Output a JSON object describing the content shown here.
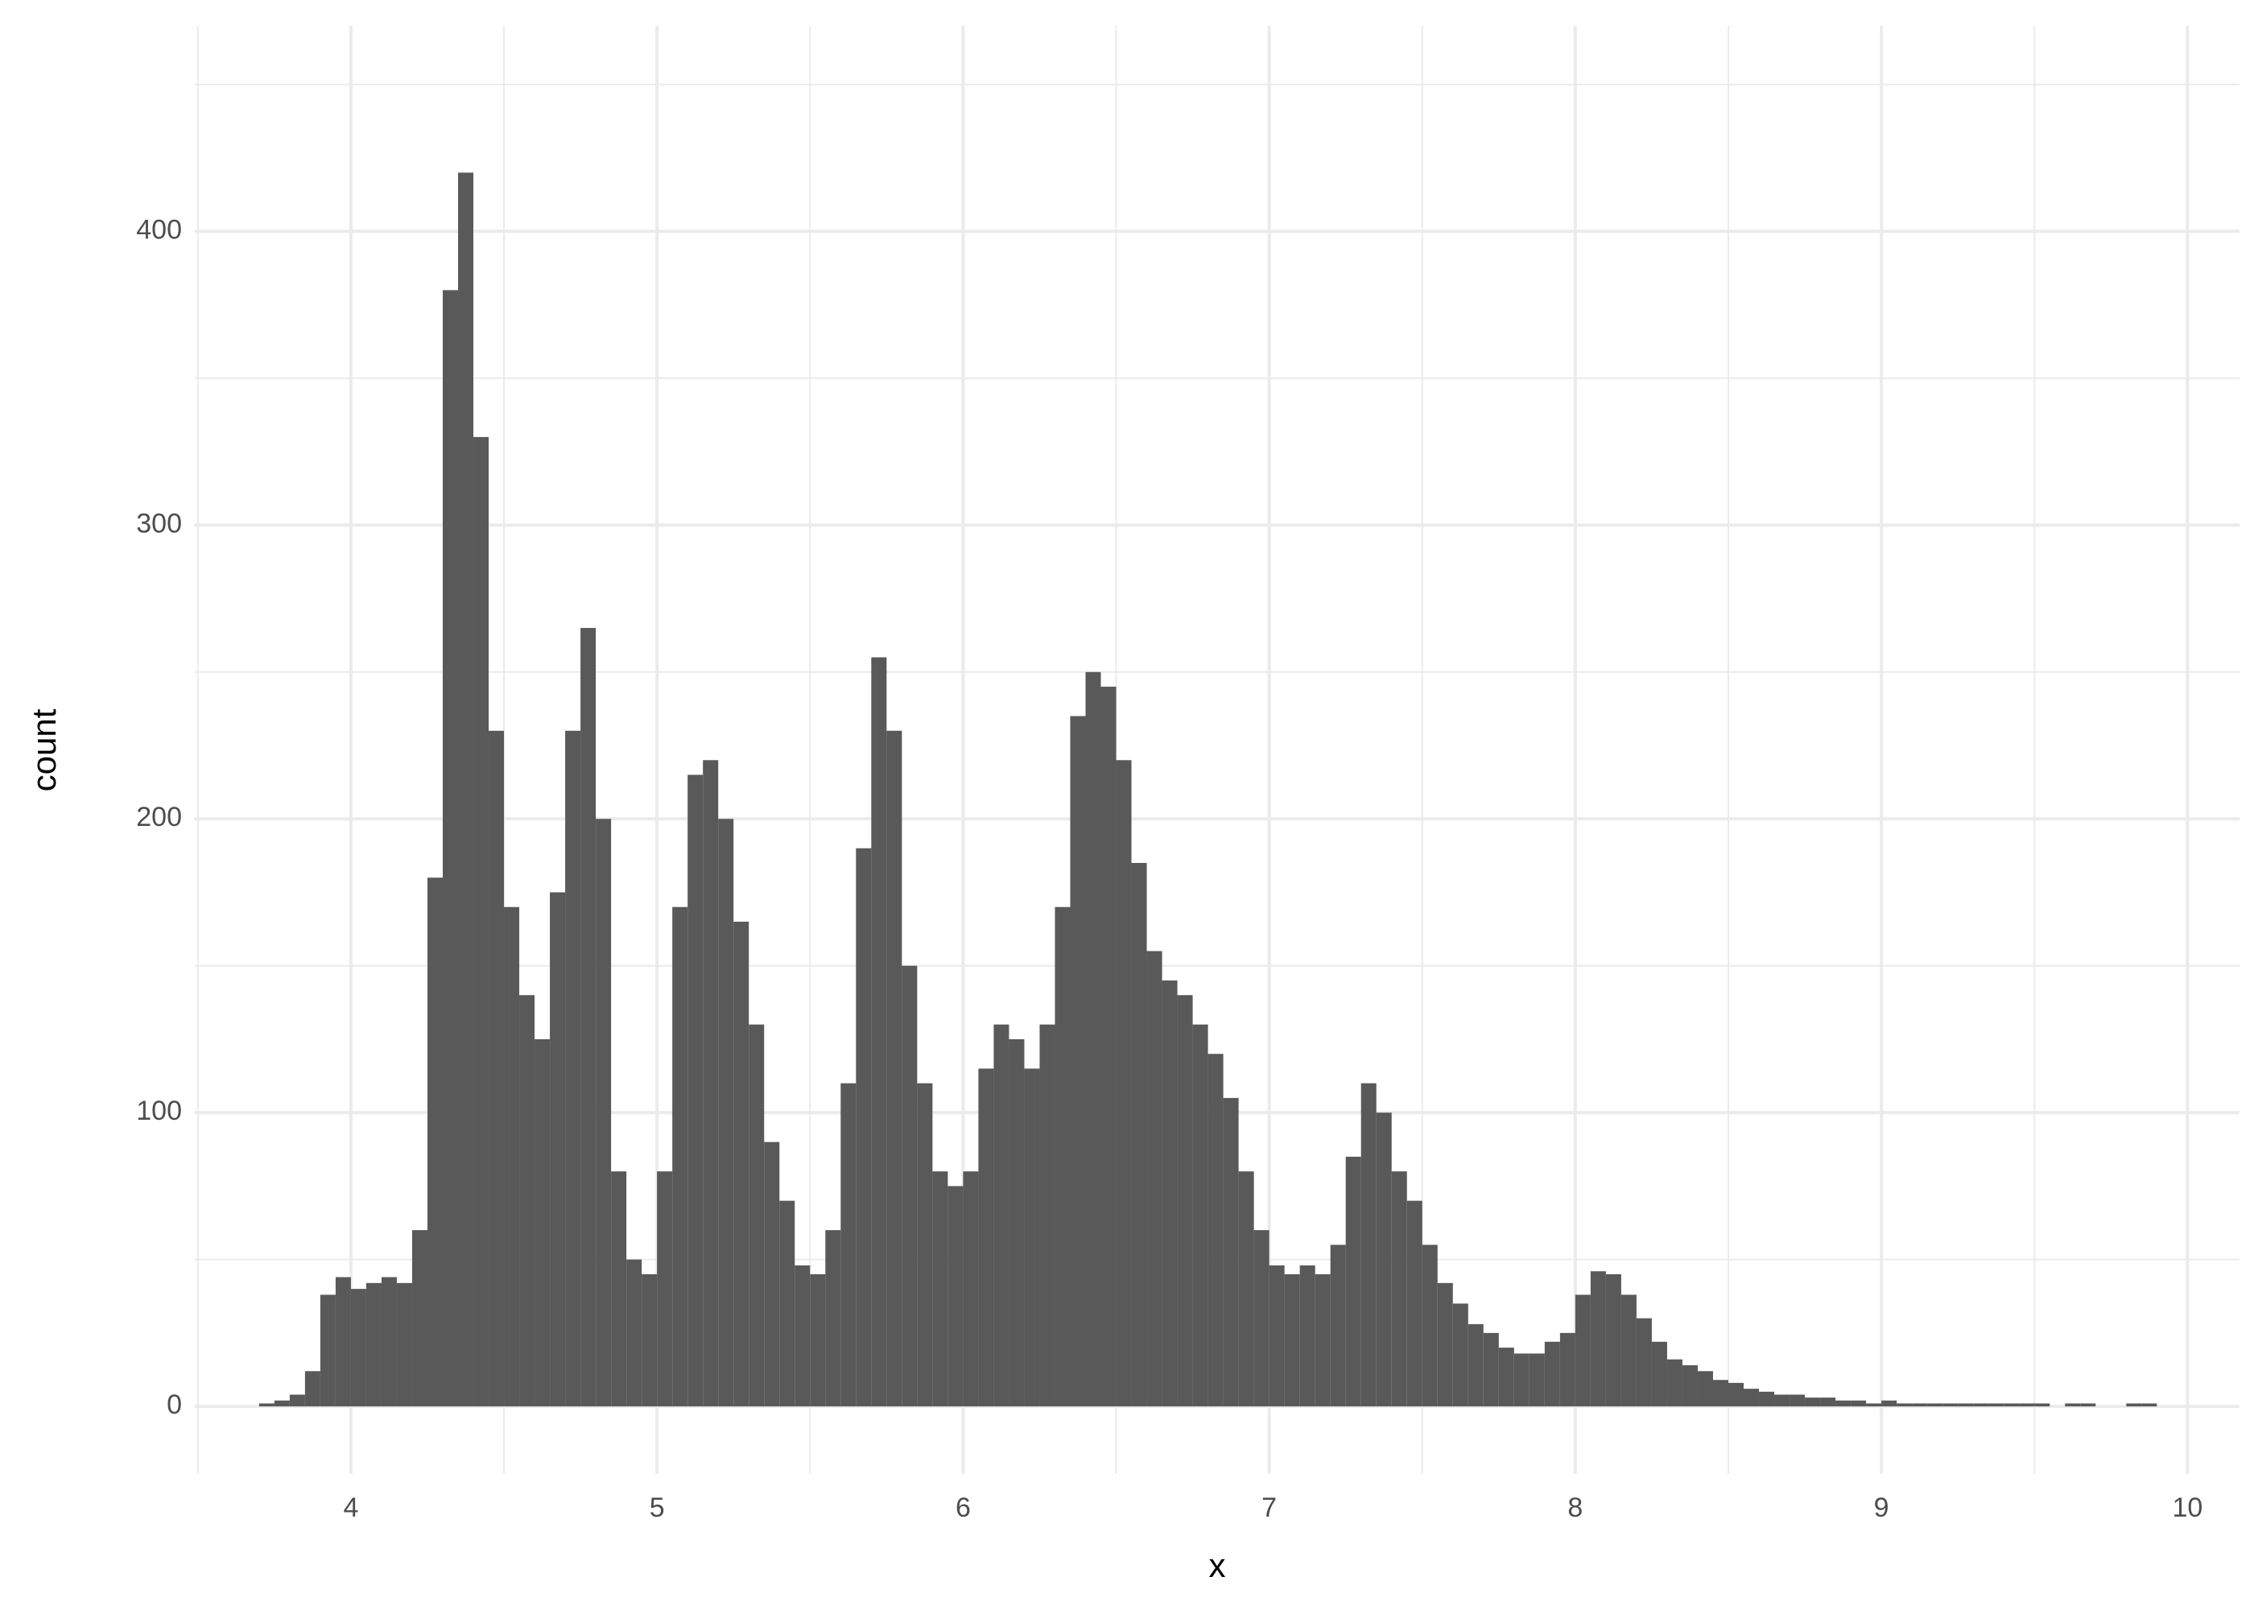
{
  "chart_data": {
    "type": "histogram",
    "x_label": "x",
    "y_label": "count",
    "color": "#595959",
    "grid": true,
    "xlim": [
      3.49,
      10.17
    ],
    "ylim": [
      -23,
      470
    ],
    "xticks": [
      4,
      5,
      6,
      7,
      8,
      9,
      10
    ],
    "yticks": [
      0,
      100,
      200,
      300,
      400
    ],
    "bins": [
      3.7,
      3.75,
      3.8,
      3.85,
      3.9,
      3.95,
      4.0,
      4.05,
      4.1,
      4.15,
      4.2,
      4.25,
      4.3,
      4.35,
      4.4,
      4.45,
      4.5,
      4.55,
      4.6,
      4.65,
      4.7,
      4.75,
      4.8,
      4.85,
      4.9,
      4.95,
      5.0,
      5.05,
      5.1,
      5.15,
      5.2,
      5.25,
      5.3,
      5.35,
      5.4,
      5.45,
      5.5,
      5.55,
      5.6,
      5.65,
      5.7,
      5.75,
      5.8,
      5.85,
      5.9,
      5.95,
      6.0,
      6.05,
      6.1,
      6.15,
      6.2,
      6.25,
      6.3,
      6.35,
      6.4,
      6.45,
      6.5,
      6.55,
      6.6,
      6.65,
      6.7,
      6.75,
      6.8,
      6.85,
      6.9,
      6.95,
      7.0,
      7.05,
      7.1,
      7.15,
      7.2,
      7.25,
      7.3,
      7.35,
      7.4,
      7.45,
      7.5,
      7.55,
      7.6,
      7.65,
      7.7,
      7.75,
      7.8,
      7.85,
      7.9,
      7.95,
      8.0,
      8.05,
      8.1,
      8.15,
      8.2,
      8.25,
      8.3,
      8.35,
      8.4,
      8.45,
      8.5,
      8.55,
      8.6,
      8.65,
      8.7,
      8.75,
      8.8,
      8.85,
      8.9,
      8.95,
      9.0,
      9.05,
      9.1,
      9.15,
      9.2,
      9.25,
      9.3,
      9.35,
      9.4,
      9.45,
      9.5,
      9.55,
      9.6,
      9.65,
      9.7,
      9.75,
      9.8,
      9.85,
      9.9
    ],
    "values": [
      1,
      2,
      4,
      12,
      38,
      44,
      40,
      42,
      44,
      42,
      60,
      180,
      380,
      420,
      330,
      230,
      170,
      140,
      125,
      175,
      230,
      265,
      200,
      80,
      50,
      45,
      80,
      170,
      215,
      220,
      200,
      165,
      130,
      90,
      70,
      48,
      45,
      60,
      110,
      190,
      255,
      230,
      150,
      110,
      80,
      75,
      80,
      115,
      130,
      125,
      115,
      130,
      170,
      235,
      250,
      245,
      220,
      185,
      155,
      145,
      140,
      130,
      120,
      105,
      80,
      60,
      48,
      45,
      48,
      45,
      55,
      85,
      110,
      100,
      80,
      70,
      55,
      42,
      35,
      28,
      25,
      20,
      18,
      18,
      22,
      25,
      38,
      46,
      45,
      38,
      30,
      22,
      16,
      14,
      12,
      9,
      8,
      6,
      5,
      4,
      4,
      3,
      3,
      2,
      2,
      1,
      2,
      1,
      1,
      1,
      1,
      1,
      1,
      1,
      1,
      1,
      1,
      0,
      1,
      1,
      0,
      0,
      1,
      1
    ]
  }
}
